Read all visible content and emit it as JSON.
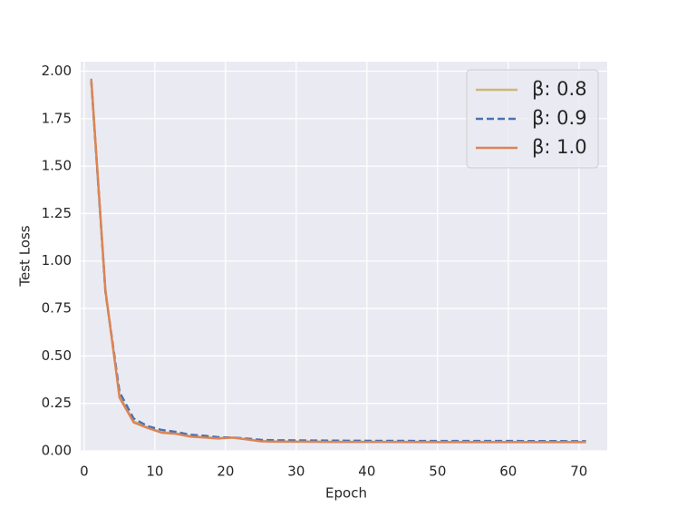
{
  "chart_data": {
    "type": "line",
    "xlabel": "Epoch",
    "ylabel": "Test Loss",
    "x": [
      1,
      3,
      5,
      7,
      9,
      11,
      13,
      15,
      17,
      19,
      21,
      23,
      25,
      27,
      31,
      35,
      41,
      51,
      61,
      71
    ],
    "series": [
      {
        "name": "β: 0.8",
        "color": "#ccb974",
        "linestyle": "solid",
        "values": [
          1.95,
          0.84,
          0.29,
          0.155,
          0.122,
          0.098,
          0.092,
          0.078,
          0.072,
          0.067,
          0.069,
          0.061,
          0.052,
          0.05,
          0.049,
          0.048,
          0.048,
          0.047,
          0.047,
          0.047
        ]
      },
      {
        "name": "β: 0.9",
        "color": "#4c72b0",
        "linestyle": "dashed",
        "values": [
          1.95,
          0.84,
          0.31,
          0.17,
          0.13,
          0.11,
          0.1,
          0.085,
          0.08,
          0.072,
          0.07,
          0.065,
          0.058,
          0.056,
          0.055,
          0.054,
          0.053,
          0.052,
          0.052,
          0.051
        ]
      },
      {
        "name": "β: 1.0",
        "color": "#dd8452",
        "linestyle": "solid",
        "values": [
          1.96,
          0.85,
          0.28,
          0.15,
          0.12,
          0.095,
          0.09,
          0.075,
          0.07,
          0.065,
          0.07,
          0.06,
          0.05,
          0.048,
          0.048,
          0.047,
          0.047,
          0.046,
          0.046,
          0.046
        ]
      }
    ],
    "xlim": [
      -0.5,
      74
    ],
    "ylim": [
      0,
      2.05
    ],
    "xticks": [
      0,
      10,
      20,
      30,
      40,
      50,
      60,
      70
    ],
    "yticks": [
      {
        "value": 0,
        "label": "0.00"
      },
      {
        "value": 0.25,
        "label": "0.25"
      },
      {
        "value": 0.5,
        "label": "0.50"
      },
      {
        "value": 0.75,
        "label": "0.75"
      },
      {
        "value": 1,
        "label": "1.00"
      },
      {
        "value": 1.25,
        "label": "1.25"
      },
      {
        "value": 1.5,
        "label": "1.50"
      },
      {
        "value": 1.75,
        "label": "1.75"
      },
      {
        "value": 2,
        "label": "2.00"
      }
    ],
    "grid": true,
    "legend": "upper right"
  }
}
